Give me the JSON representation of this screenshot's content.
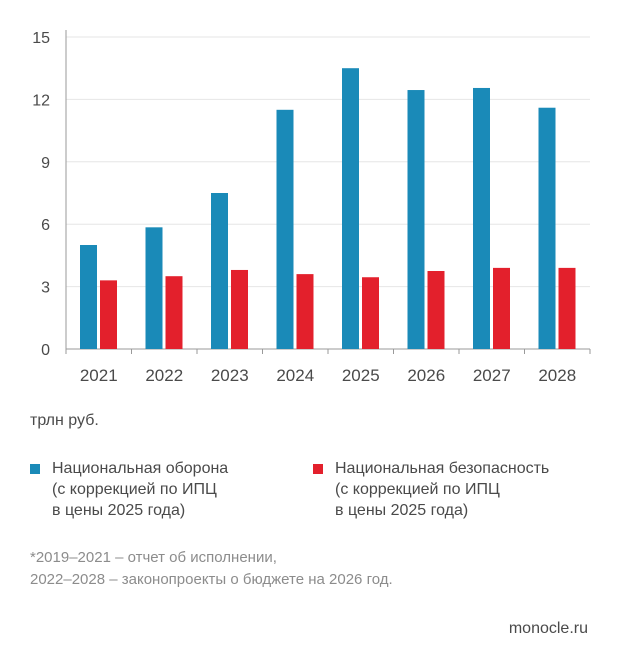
{
  "chart_data": {
    "type": "bar",
    "categories": [
      "2021",
      "2022",
      "2023",
      "2024",
      "2025",
      "2026",
      "2027",
      "2028"
    ],
    "series": [
      {
        "name": "Национальная оборона (с коррекцией по ИПЦ в цены 2025 года)",
        "color": "#1a8ab8",
        "values": [
          5.0,
          5.85,
          7.5,
          11.5,
          13.5,
          12.45,
          12.55,
          11.6
        ]
      },
      {
        "name": "Национальная безопасность (с коррекцией по ИПЦ в цены 2025 года)",
        "color": "#e3202c",
        "values": [
          3.3,
          3.5,
          3.8,
          3.6,
          3.45,
          3.75,
          3.9,
          3.9
        ]
      }
    ],
    "yticks": [
      "0",
      "3",
      "6",
      "9",
      "12",
      "15"
    ],
    "ylim": [
      0,
      15
    ],
    "ylabel": "трлн руб.",
    "xlabel": "",
    "grid": true,
    "legend_position": "bottom"
  },
  "unit_label": "трлн руб.",
  "legend": {
    "defense": "Национальная оборона\n(с коррекцией по ИПЦ\nв цены 2025 года)",
    "security": "Национальная безопасность\n(с коррекцией по ИПЦ\nв цены 2025 года)"
  },
  "footnote": "*2019–2021 – отчет об исполнении,\n2022–2028 – законопроекты о бюджете на 2026 год.",
  "source": "monocle.ru"
}
